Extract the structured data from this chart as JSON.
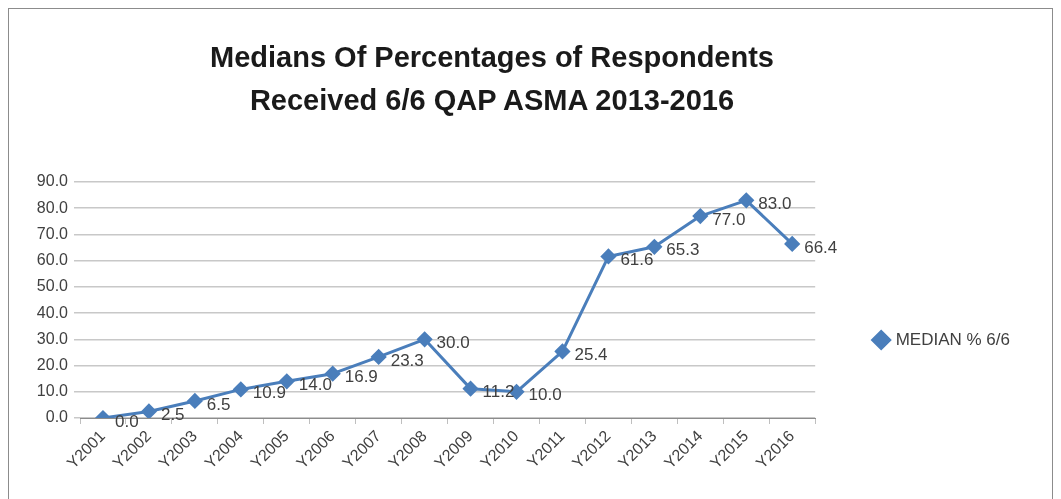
{
  "chart_data": {
    "type": "line",
    "title": "Medians Of Percentages of Respondents Received 6/6 QAP ASMA 2013-2016",
    "categories": [
      "Y2001",
      "Y2002",
      "Y2003",
      "Y2004",
      "Y2005",
      "Y2006",
      "Y2007",
      "Y2008",
      "Y2009",
      "Y2010",
      "Y2011",
      "Y2012",
      "Y2013",
      "Y2014",
      "Y2015",
      "Y2016"
    ],
    "series": [
      {
        "name": "MEDIAN % 6/6",
        "color": "#4a7ebb",
        "values": [
          0.0,
          2.5,
          6.5,
          10.9,
          14.0,
          16.9,
          23.3,
          30.0,
          11.2,
          10.0,
          25.4,
          61.6,
          65.3,
          77.0,
          83.0,
          66.4
        ],
        "value_labels": [
          "0.0",
          "2.5",
          "6.5",
          "10.9",
          "14.0",
          "16.9",
          "23.3",
          "30.0",
          "11.2",
          "10.0",
          "25.4",
          "61.6",
          "65.3",
          "77.0",
          "83.0",
          "66.4"
        ]
      }
    ],
    "ylim": [
      0,
      90
    ],
    "yticks": [
      {
        "value": 0,
        "label": "0.0"
      },
      {
        "value": 10,
        "label": "10.0"
      },
      {
        "value": 20,
        "label": "20.0"
      },
      {
        "value": 30,
        "label": "30.0"
      },
      {
        "value": 40,
        "label": "40.0"
      },
      {
        "value": 50,
        "label": "50.0"
      },
      {
        "value": 60,
        "label": "60.0"
      },
      {
        "value": 70,
        "label": "70.0"
      },
      {
        "value": 80,
        "label": "80.0"
      },
      {
        "value": 90,
        "label": "90.0"
      }
    ],
    "grid": "y",
    "legend": "right",
    "marker": "diamond",
    "line_style": "solid"
  }
}
